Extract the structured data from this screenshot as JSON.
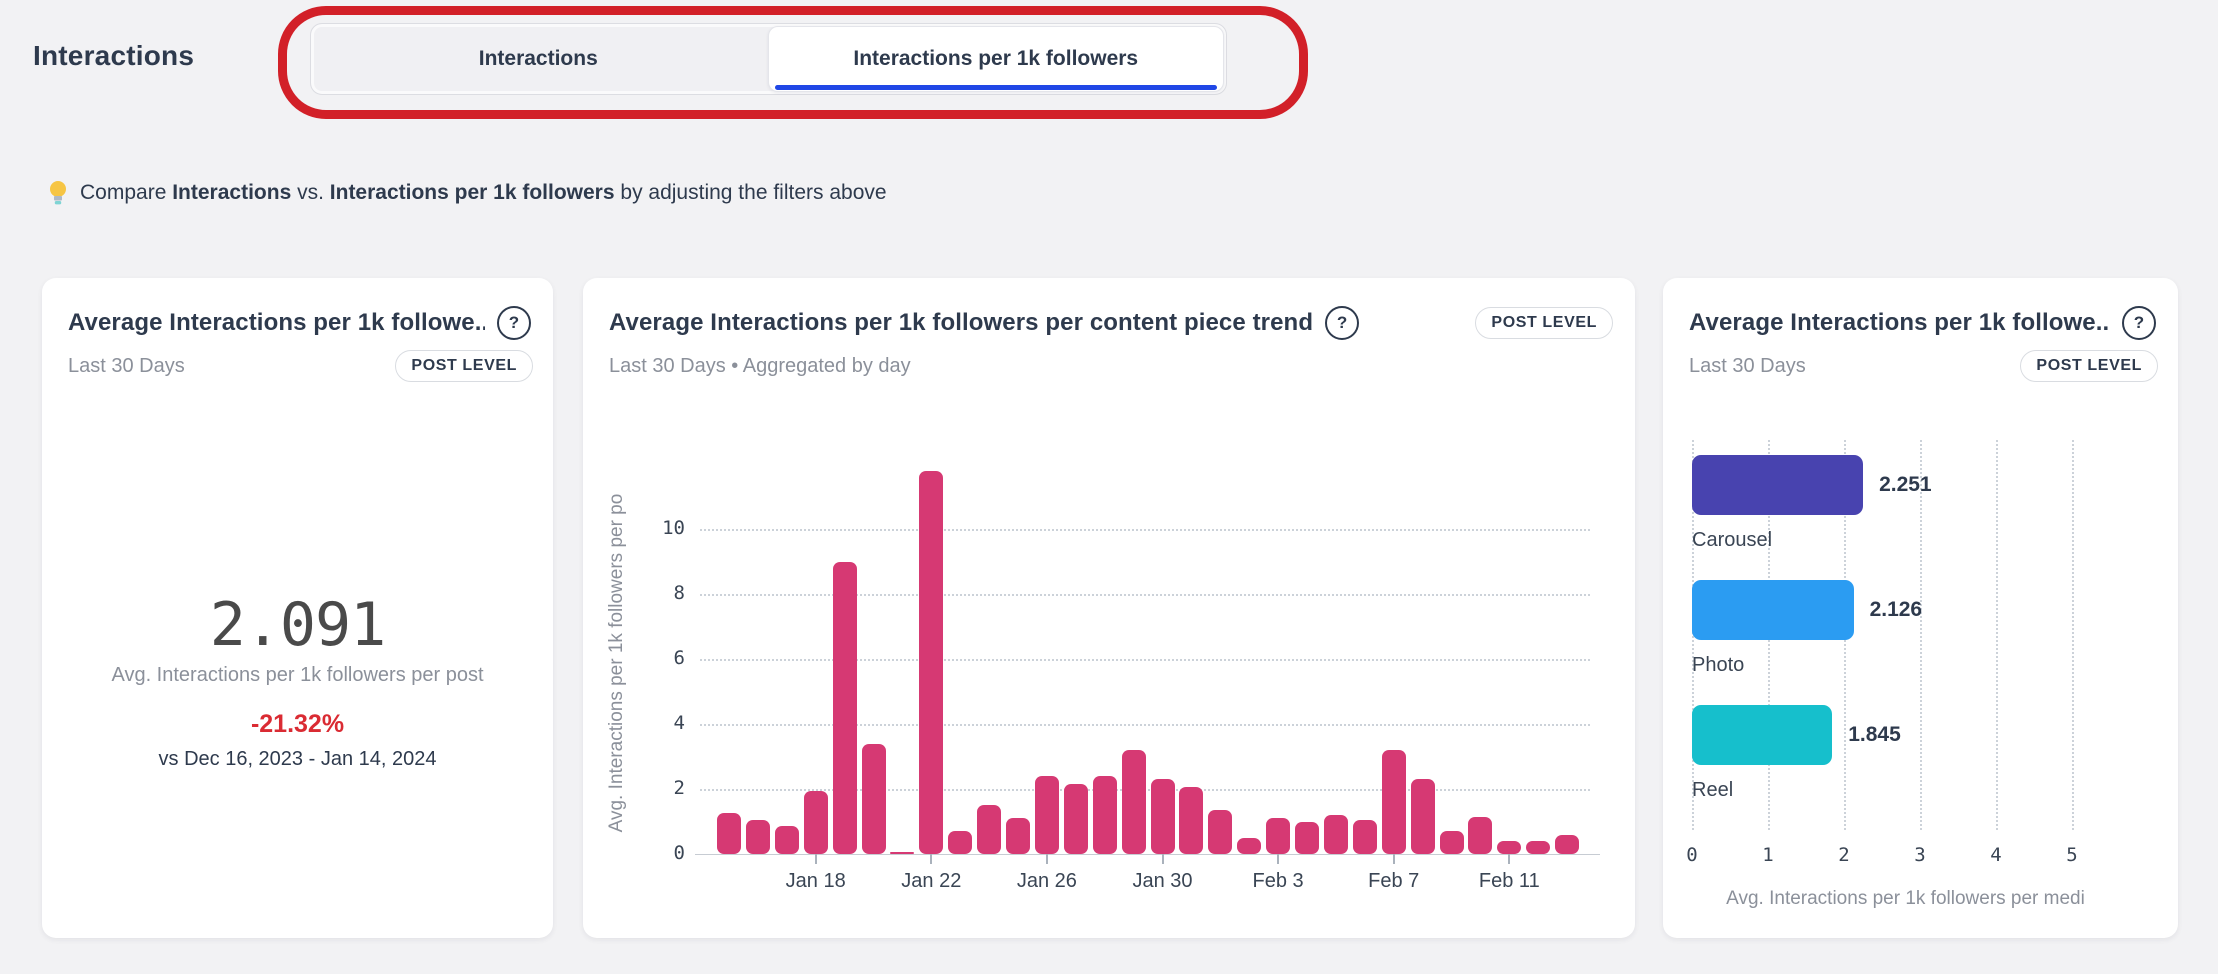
{
  "page": {
    "title": "Interactions",
    "tip": {
      "prefix": "Compare",
      "bold1": "Interactions",
      "middle": "vs.",
      "bold2": "Interactions per 1k followers",
      "suffix": "by adjusting the filters above"
    }
  },
  "icons": {
    "help_glyph": "?"
  },
  "colors": {
    "annotation_red": "#d22028",
    "active_tab_underline": "#2047e6",
    "delta_red": "#da2b33"
  },
  "tabs": {
    "items": [
      {
        "label": "Interactions",
        "active": false
      },
      {
        "label": "Interactions per 1k followers",
        "active": true
      }
    ]
  },
  "cards": {
    "summary": {
      "title": "Average Interactions per 1k followe...",
      "period": "Last 30 Days",
      "badge": "POST LEVEL",
      "value": "2.091",
      "value_label": "Avg. Interactions per 1k followers per post",
      "delta": "-21.32%",
      "comparison": "vs Dec 16, 2023 - Jan 14, 2024"
    },
    "trend": {
      "title": "Average Interactions per 1k followers per content piece trend",
      "period": "Last 30 Days • Aggregated by day",
      "badge": "POST LEVEL",
      "chart_data": {
        "type": "bar",
        "title": "Average Interactions per 1k followers per content piece trend",
        "ylabel": "Avg. Interactions per 1k followers per po",
        "xlabel": "",
        "ylim": [
          0,
          12
        ],
        "yticks": [
          0,
          2,
          4,
          6,
          8,
          10
        ],
        "grid": true,
        "bar_color": "#d63973",
        "x": [
          "Jan 15",
          "Jan 16",
          "Jan 17",
          "Jan 18",
          "Jan 19",
          "Jan 20",
          "Jan 21",
          "Jan 22",
          "Jan 23",
          "Jan 24",
          "Jan 25",
          "Jan 26",
          "Jan 27",
          "Jan 28",
          "Jan 29",
          "Jan 30",
          "Jan 31",
          "Feb 1",
          "Feb 2",
          "Feb 3",
          "Feb 4",
          "Feb 5",
          "Feb 6",
          "Feb 7",
          "Feb 8",
          "Feb 9",
          "Feb 10",
          "Feb 11",
          "Feb 12",
          "Feb 13"
        ],
        "values": [
          1.25,
          1.05,
          0.85,
          1.95,
          9.0,
          3.4,
          0.05,
          11.8,
          0.7,
          1.5,
          1.1,
          2.4,
          2.15,
          2.4,
          3.2,
          2.3,
          2.05,
          1.35,
          0.5,
          1.1,
          1.0,
          1.2,
          1.05,
          3.2,
          2.3,
          0.7,
          1.15,
          0.4,
          0.4,
          0.6
        ],
        "xtick_labels": [
          "Jan 18",
          "Jan 22",
          "Jan 26",
          "Jan 30",
          "Feb 3",
          "Feb 7",
          "Feb 11"
        ],
        "xtick_indices": [
          3,
          7,
          11,
          15,
          19,
          23,
          27
        ]
      }
    },
    "media": {
      "title": "Average Interactions per 1k followe...",
      "period": "Last 30 Days",
      "badge": "POST LEVEL",
      "chart_data": {
        "type": "bar-horizontal",
        "categories": [
          "Carousel",
          "Photo",
          "Reel"
        ],
        "values": [
          2.251,
          2.126,
          1.845
        ],
        "value_labels": [
          "2.251",
          "2.126",
          "1.845"
        ],
        "colors": [
          "#4843af",
          "#2b9cf2",
          "#16bfcc"
        ],
        "xticks": [
          0,
          1,
          2,
          3,
          4,
          5
        ],
        "xlim": [
          0,
          5
        ],
        "grid": true,
        "xlabel": "Avg. Interactions per 1k followers per medi"
      }
    }
  }
}
